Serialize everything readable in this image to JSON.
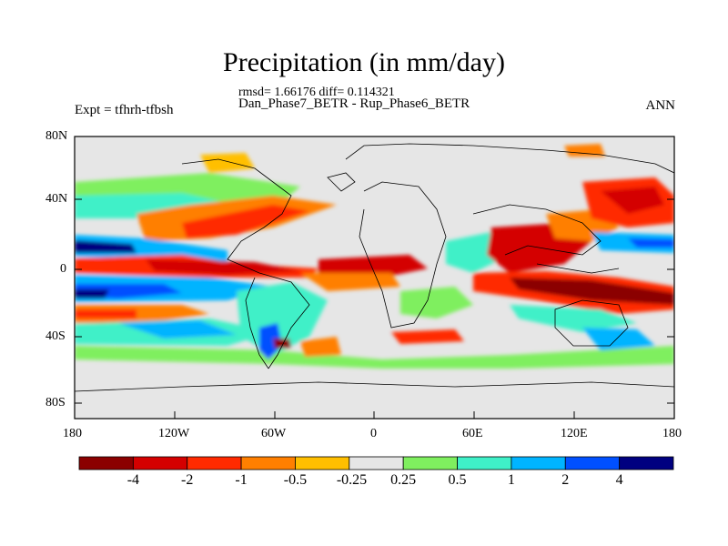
{
  "title": "Precipitation (in mm/day)",
  "stats_line": "rmsd= 1.66176  diff= 0.114321",
  "subtitle": "Dan_Phase7_BETR - Rup_Phase6_BETR",
  "left_label": "Expt = tfhrh-tfbsh",
  "right_label": "ANN",
  "lat_ticks": [
    "80N",
    "40N",
    "0",
    "40S",
    "80S"
  ],
  "lon_ticks": [
    "180",
    "120W",
    "60W",
    "0",
    "60E",
    "120E",
    "180"
  ],
  "colorbar": {
    "labels": [
      "-4",
      "-2",
      "-1",
      "-0.5",
      "-0.25",
      "0.25",
      "0.5",
      "1",
      "2",
      "4"
    ],
    "colors": [
      "#8b0000",
      "#d40000",
      "#ff2a00",
      "#ff7f00",
      "#ffbf00",
      "#e6e6e6",
      "#7fef5f",
      "#3ff0c8",
      "#00b4ff",
      "#0050ff",
      "#000080"
    ]
  }
}
